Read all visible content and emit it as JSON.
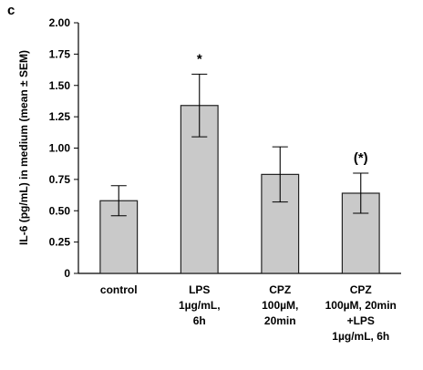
{
  "panel_label": "c",
  "chart_data": {
    "type": "bar",
    "categories": [
      [
        "control"
      ],
      [
        "LPS",
        "1µg/mL,",
        "6h"
      ],
      [
        "CPZ",
        "100µM,",
        "20min"
      ],
      [
        "CPZ",
        "100µM, 20min",
        "+LPS",
        "1µg/mL, 6h"
      ]
    ],
    "values": [
      0.58,
      1.34,
      0.79,
      0.64
    ],
    "errors": [
      0.12,
      0.25,
      0.22,
      0.16
    ],
    "annotations": [
      "",
      "*",
      "",
      "(*)"
    ],
    "ylabel": "IL-6 (pg/mL) in medium (mean ± SEM)",
    "xlabel": "",
    "ylim": [
      0,
      2.0
    ],
    "yticks": [
      "0",
      "0.25",
      "0.50",
      "0.75",
      "1.00",
      "1.25",
      "1.50",
      "1.75",
      "2.00"
    ],
    "grid": false,
    "colors": {
      "bar_fill": "#c9c9c9",
      "bar_stroke": "#222222",
      "axis": "#000000"
    }
  }
}
